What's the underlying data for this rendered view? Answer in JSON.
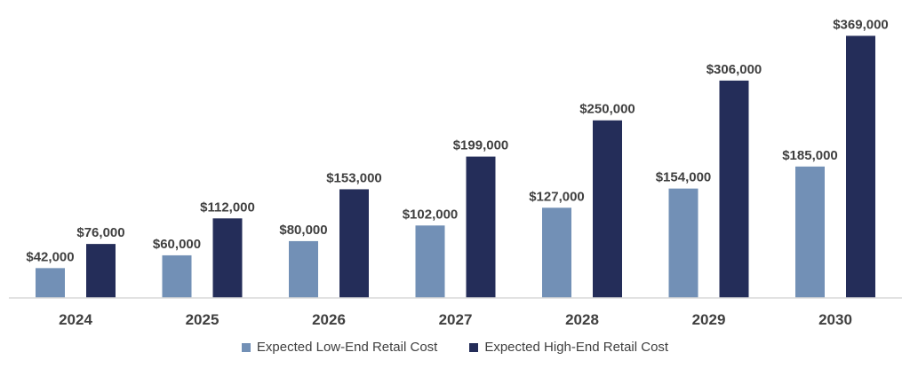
{
  "chart_data": {
    "type": "bar",
    "categories": [
      "2024",
      "2025",
      "2026",
      "2027",
      "2028",
      "2029",
      "2030"
    ],
    "series": [
      {
        "name": "Expected Low-End Retail Cost",
        "color": "#7290b6",
        "values": [
          42000,
          60000,
          80000,
          102000,
          127000,
          154000,
          185000
        ],
        "labels": [
          "$42,000",
          "$60,000",
          "$80,000",
          "$102,000",
          "$127,000",
          "$154,000",
          "$185,000"
        ]
      },
      {
        "name": "Expected High-End Retail Cost",
        "color": "#242d59",
        "values": [
          76000,
          112000,
          153000,
          199000,
          250000,
          306000,
          369000
        ],
        "labels": [
          "$76,000",
          "$112,000",
          "$153,000",
          "$199,000",
          "$250,000",
          "$306,000",
          "$369,000"
        ]
      }
    ],
    "title": "",
    "xlabel": "",
    "ylabel": "",
    "ylim": [
      0,
      372000
    ],
    "grid": false,
    "legend_position": "bottom"
  }
}
